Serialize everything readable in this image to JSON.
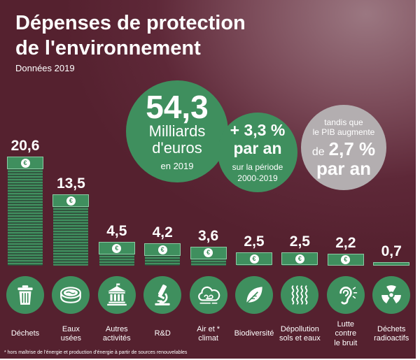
{
  "chart_data": {
    "type": "bar",
    "title": "Dépenses de protection\nde l'environnement",
    "subtitle": "Données 2019",
    "categories": [
      "Déchets",
      "Eaux\nusées",
      "Autres\nactivités",
      "R&D",
      "Air et *\nclimat",
      "Biodiversité",
      "Dépollution\nsols et eaux",
      "Lutte\ncontre\nle bruit",
      "Déchets\nradioactifs"
    ],
    "values": [
      20.6,
      13.5,
      4.5,
      4.2,
      3.6,
      2.5,
      2.5,
      2.2,
      0.7
    ],
    "icons": [
      "trash-icon",
      "wastewater-basin-icon",
      "bank-building-icon",
      "microscope-icon",
      "cloud-icon",
      "leaf-icon",
      "wavy-lines-icon",
      "ear-icon",
      "radiation-icon"
    ],
    "xlabel": "",
    "ylabel": "",
    "grid": false,
    "legend": "none"
  },
  "bill_symbol": "€",
  "highlights": {
    "total": {
      "value": "54,3",
      "line1": "Milliards",
      "line2": "d'euros",
      "line3": "en 2019"
    },
    "growth": {
      "value": "+ 3,3 %",
      "unit": "par an",
      "line1": "sur la période",
      "line2": "2000-2019"
    },
    "gdp": {
      "line1": "tandis que",
      "line2": "le PIB augmente",
      "prefix": "de",
      "value": "2,7 %",
      "unit": "par an"
    }
  },
  "footnote": "* hors maîtrise de l'énergie et production d'énergie à partir de sources renouvelables",
  "colors": {
    "accent_green": "#3f8f5e",
    "grey": "#b3aeb0",
    "background": "#5e2838",
    "text": "#ffffff"
  }
}
